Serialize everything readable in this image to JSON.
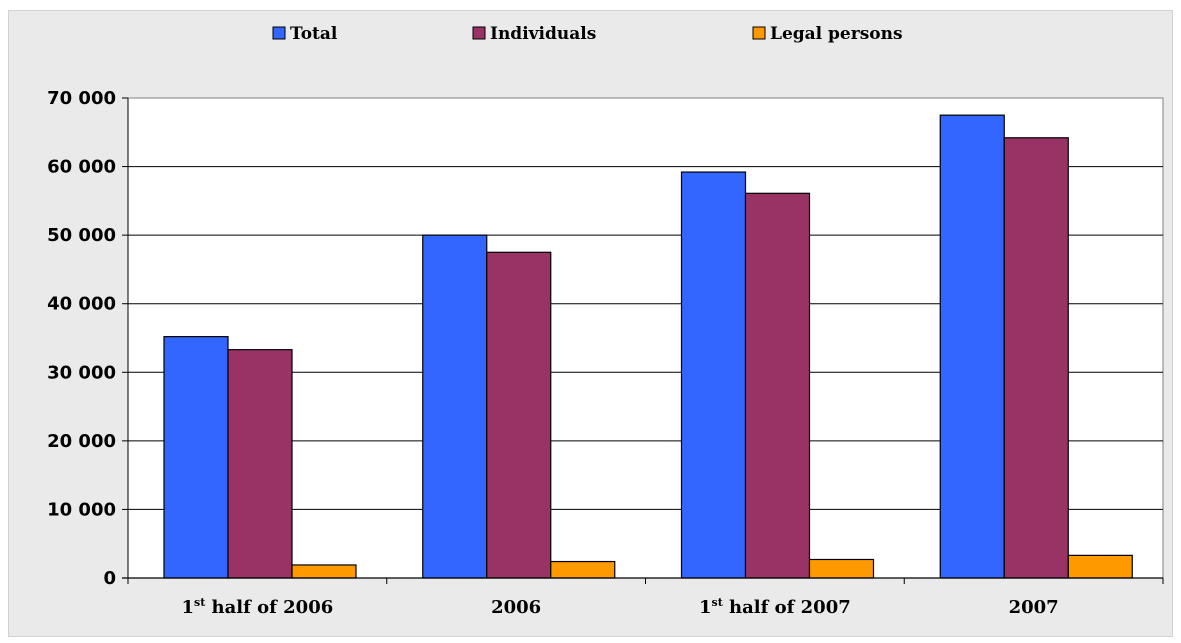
{
  "chart_data": {
    "type": "bar",
    "categories": [
      {
        "pre": "1",
        "sup": "st",
        "post": " half of 2006"
      },
      {
        "pre": "2006",
        "sup": "",
        "post": ""
      },
      {
        "pre": "1",
        "sup": "st",
        "post": " half of 2007"
      },
      {
        "pre": "2007",
        "sup": "",
        "post": ""
      }
    ],
    "series": [
      {
        "name": "Total",
        "color": "#3366ff",
        "values": [
          35200,
          50000,
          59200,
          67500
        ]
      },
      {
        "name": "Individuals",
        "color": "#993366",
        "values": [
          33300,
          47500,
          56100,
          64200
        ]
      },
      {
        "name": "Legal persons",
        "color": "#ff9900",
        "values": [
          1900,
          2400,
          2700,
          3300
        ]
      }
    ],
    "ylim": [
      0,
      70000
    ],
    "yticks": [
      "0",
      "10 000",
      "20 000",
      "30 000",
      "40 000",
      "50 000",
      "60 000",
      "70 000"
    ],
    "ytick_values": [
      0,
      10000,
      20000,
      30000,
      40000,
      50000,
      60000,
      70000
    ],
    "grid": true,
    "legend_position": "top"
  }
}
